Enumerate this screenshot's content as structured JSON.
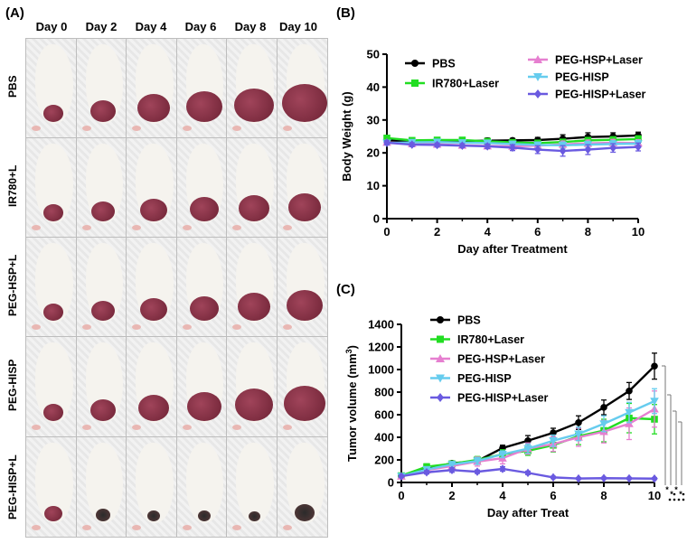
{
  "panels": {
    "a": "(A)",
    "b": "(B)",
    "c": "(C)"
  },
  "photo_grid": {
    "days": [
      "Day 0",
      "Day 2",
      "Day 4",
      "Day 6",
      "Day 8",
      "Day 10"
    ],
    "groups": [
      "PBS",
      "IR780+L",
      "PEG-HSP+L",
      "PEG-HISP",
      "PEG-HISP+L"
    ]
  },
  "colors": {
    "PBS": "#000000",
    "IR780+Laser": "#22dd22",
    "PEG-HSP+Laser": "#e67fd0",
    "PEG-HISP": "#66ccee",
    "PEG-HISP+Laser": "#6a5ae0"
  },
  "chart_data": [
    {
      "type": "line",
      "title": "",
      "xlabel": "Day after Treatment",
      "ylabel": "Body Weight  (g)",
      "xlim": [
        0,
        10
      ],
      "ylim": [
        0,
        50
      ],
      "xticks": [
        0,
        2,
        4,
        6,
        8,
        10
      ],
      "yticks": [
        0,
        10,
        20,
        30,
        40,
        50
      ],
      "x": [
        0,
        1,
        2,
        3,
        4,
        5,
        6,
        7,
        8,
        9,
        10
      ],
      "legend_left": [
        "PBS",
        "IR780+Laser"
      ],
      "legend_right": [
        "PEG-HSP+Laser",
        "PEG-HISP",
        "PEG-HISP+Laser"
      ],
      "series": [
        {
          "name": "PBS",
          "marker": "circle",
          "values": [
            23.8,
            23.5,
            23.6,
            23.6,
            23.7,
            23.8,
            23.9,
            24.3,
            24.8,
            25.0,
            25.3
          ],
          "err": [
            0.6,
            0.5,
            0.5,
            0.6,
            0.8,
            0.6,
            0.8,
            1.2,
            1.3,
            1.1,
            1.0
          ]
        },
        {
          "name": "IR780+Laser",
          "marker": "square",
          "values": [
            24.5,
            23.8,
            23.9,
            23.9,
            23.5,
            23.2,
            23.0,
            23.3,
            23.8,
            24.0,
            24.2
          ],
          "err": [
            0.7,
            0.5,
            0.5,
            0.6,
            0.6,
            0.6,
            0.7,
            0.8,
            0.9,
            0.9,
            1.0
          ]
        },
        {
          "name": "PEG-HSP+Laser",
          "marker": "triangle-up",
          "values": [
            23.2,
            22.8,
            22.6,
            22.3,
            22.1,
            22.0,
            22.2,
            22.6,
            22.9,
            23.1,
            23.0
          ],
          "err": [
            0.6,
            0.6,
            0.6,
            0.6,
            0.7,
            0.8,
            1.0,
            1.0,
            1.0,
            1.0,
            1.0
          ]
        },
        {
          "name": "PEG-HISP",
          "marker": "triangle-down",
          "values": [
            23.0,
            23.2,
            23.3,
            23.1,
            23.0,
            22.7,
            22.4,
            22.3,
            22.5,
            22.7,
            22.8
          ],
          "err": [
            0.6,
            0.5,
            0.5,
            0.5,
            0.6,
            0.7,
            0.9,
            1.0,
            1.0,
            1.0,
            1.0
          ]
        },
        {
          "name": "PEG-HISP+Laser",
          "marker": "diamond",
          "values": [
            23.1,
            22.5,
            22.4,
            22.2,
            22.0,
            21.6,
            21.0,
            20.6,
            21.0,
            21.5,
            21.8
          ],
          "err": [
            0.6,
            0.6,
            0.6,
            0.6,
            0.7,
            0.9,
            1.2,
            1.6,
            1.5,
            1.3,
            1.2
          ]
        }
      ]
    },
    {
      "type": "line",
      "title": "",
      "xlabel": "Day after Treat",
      "ylabel": "Tumor volume (mm",
      "ylabel_sup": "3",
      "ylabel_end": ")",
      "xlim": [
        0,
        10
      ],
      "ylim": [
        0,
        1400
      ],
      "xticks": [
        0,
        2,
        4,
        6,
        8,
        10
      ],
      "yticks": [
        0,
        200,
        400,
        600,
        800,
        1000,
        1200,
        1400
      ],
      "x": [
        0,
        1,
        2,
        3,
        4,
        5,
        6,
        7,
        8,
        9,
        10
      ],
      "significance": [
        "*",
        "*",
        "*",
        "*"
      ],
      "series": [
        {
          "name": "PBS",
          "marker": "circle",
          "values": [
            60,
            120,
            170,
            190,
            305,
            370,
            440,
            530,
            665,
            810,
            1030
          ],
          "err": [
            10,
            20,
            20,
            25,
            25,
            45,
            40,
            60,
            65,
            75,
            115
          ]
        },
        {
          "name": "IR780+Laser",
          "marker": "square",
          "values": [
            60,
            140,
            165,
            200,
            250,
            280,
            330,
            410,
            460,
            570,
            560
          ],
          "err": [
            10,
            25,
            25,
            30,
            40,
            40,
            60,
            75,
            100,
            130,
            130
          ]
        },
        {
          "name": "PEG-HSP+Laser",
          "marker": "triangle-up",
          "values": [
            55,
            110,
            145,
            185,
            215,
            300,
            340,
            400,
            450,
            520,
            650
          ],
          "err": [
            10,
            25,
            25,
            40,
            50,
            50,
            65,
            80,
            100,
            140,
            160
          ]
        },
        {
          "name": "PEG-HISP",
          "marker": "triangle-down",
          "values": [
            55,
            115,
            160,
            190,
            250,
            300,
            370,
            430,
            520,
            620,
            720
          ],
          "err": [
            10,
            20,
            25,
            30,
            30,
            40,
            50,
            60,
            70,
            90,
            110
          ]
        },
        {
          "name": "PEG-HISP+Laser",
          "marker": "diamond",
          "values": [
            55,
            90,
            110,
            95,
            120,
            85,
            45,
            35,
            38,
            36,
            34
          ],
          "err": [
            10,
            15,
            20,
            15,
            20,
            15,
            10,
            8,
            8,
            8,
            8
          ]
        }
      ]
    }
  ]
}
